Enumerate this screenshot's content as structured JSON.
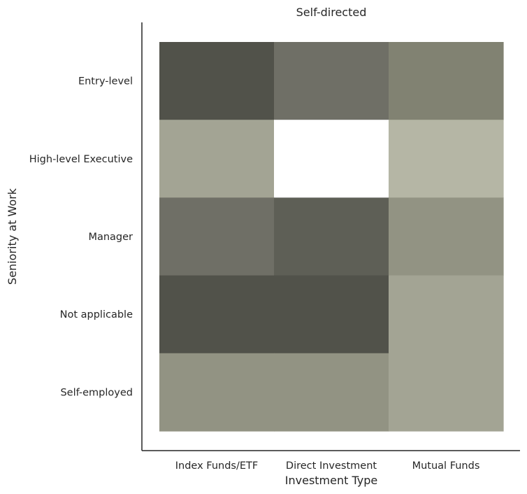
{
  "chart_data": {
    "type": "heatmap",
    "title": "Self-directed",
    "xlabel": "Investment Type",
    "ylabel": "Seniority at Work",
    "x_categories": [
      "Index Funds/ETF",
      "Direct Investment",
      "Mutual Funds"
    ],
    "y_categories": [
      "Entry-level",
      "High-level Executive",
      "Manager",
      "Not applicable",
      "Self-employed"
    ],
    "values": [
      [
        5,
        3,
        2
      ],
      [
        1,
        0,
        0.5
      ],
      [
        3,
        4,
        1.5
      ],
      [
        5,
        5,
        1
      ],
      [
        1.5,
        1.5,
        1
      ]
    ],
    "color_scale": {
      "stops": [
        {
          "v": 0,
          "color": "#ffffff"
        },
        {
          "v": 0.5,
          "color": "#b5b6a5"
        },
        {
          "v": 1,
          "color": "#a3a494"
        },
        {
          "v": 1.5,
          "color": "#929383"
        },
        {
          "v": 2,
          "color": "#818272"
        },
        {
          "v": 3,
          "color": "#6f6f66"
        },
        {
          "v": 4,
          "color": "#5e5f56"
        },
        {
          "v": 5,
          "color": "#51524a"
        }
      ]
    },
    "grid": false,
    "legend": "none",
    "spines": [
      "left",
      "bottom"
    ]
  }
}
